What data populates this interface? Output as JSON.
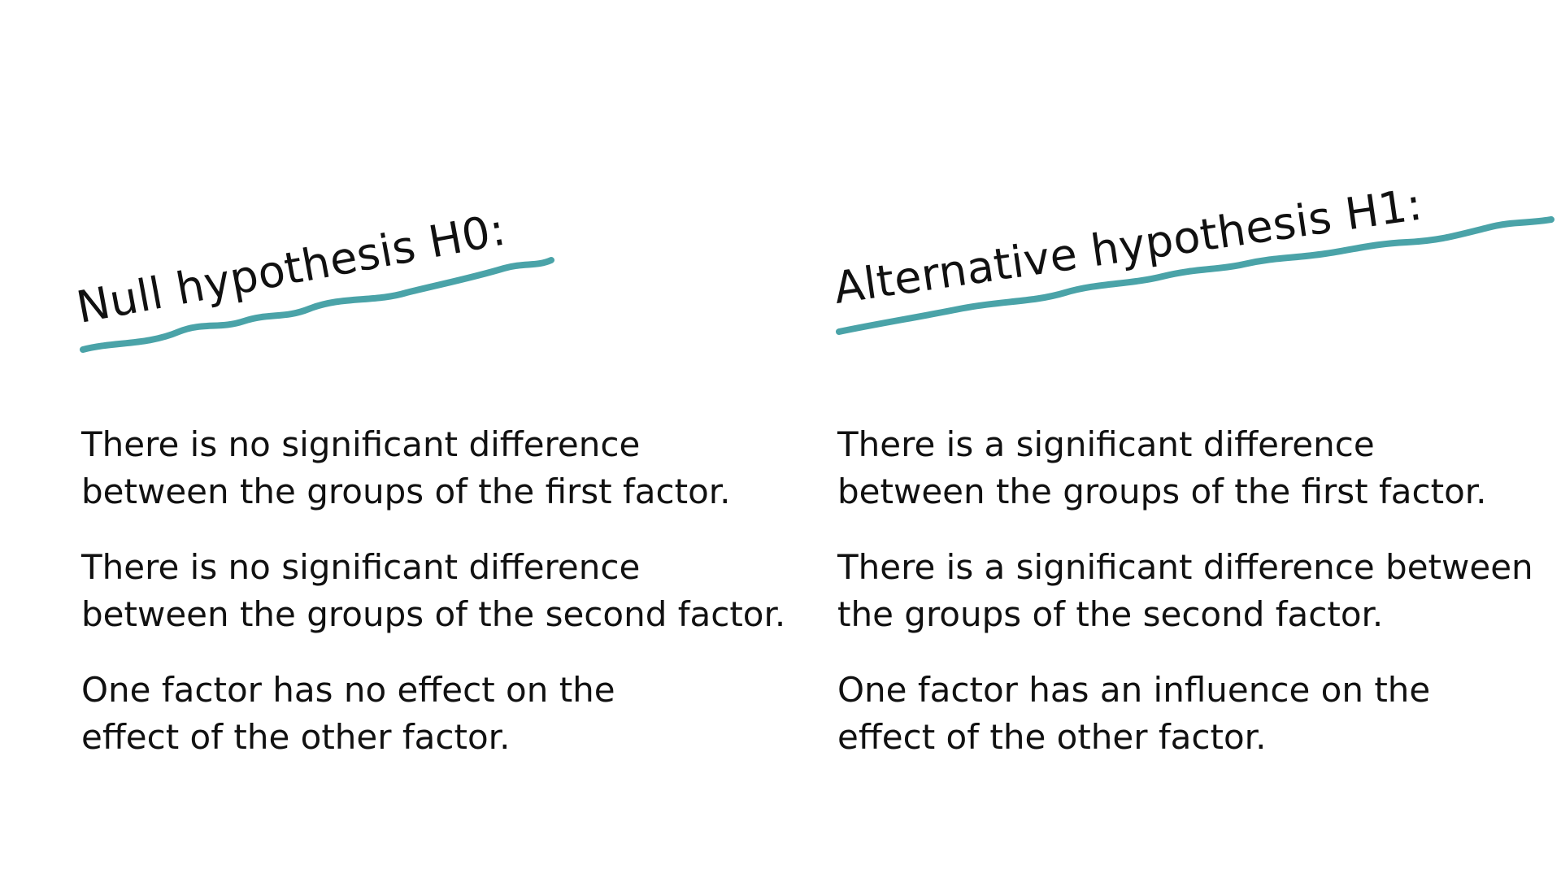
{
  "accent_color": "#4aa3a8",
  "null_hypothesis": {
    "title": "Null hypothesis H0:",
    "statements": [
      "There is no significant difference\nbetween the groups of the first factor.",
      "There is no significant difference\nbetween the groups of the second factor.",
      "One factor has no effect on the\neffect of the other factor."
    ]
  },
  "alternative_hypothesis": {
    "title": "Alternative hypothesis H1:",
    "statements": [
      "There is a significant difference\nbetween the groups of the first factor.",
      "There is a significant difference between\nthe groups of the second factor.",
      "One factor has an influence on the\neffect of the other factor."
    ]
  }
}
